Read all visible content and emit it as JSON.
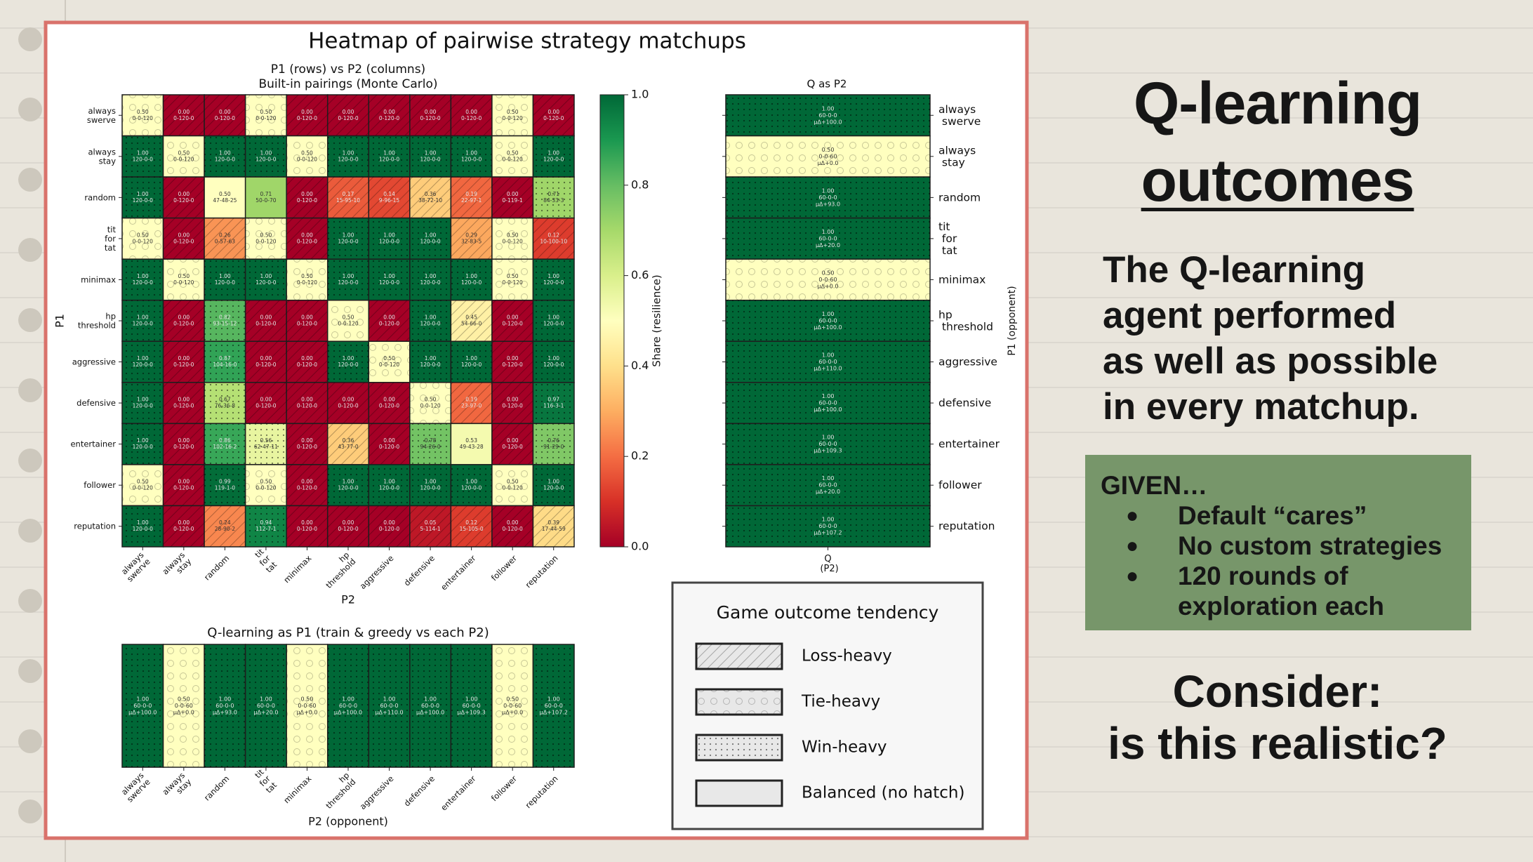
{
  "figure_title": "Heatmap of pairwise strategy matchups",
  "chart_data": [
    {
      "type": "heatmap",
      "title": "P1 (rows) vs P2 (columns)",
      "subtitle": "Built-in pairings (Monte Carlo)",
      "xlabel": "P2",
      "ylabel": "P1",
      "cmap": "RdYlGn",
      "x_categories": [
        "always swerve",
        "always stay",
        "random",
        "tit for tat",
        "minimax",
        "hp threshold",
        "aggressive",
        "defensive",
        "entertainer",
        "follower",
        "reputation"
      ],
      "y_categories": [
        "always swerve",
        "always stay",
        "random",
        "tit for tat",
        "minimax",
        "hp threshold",
        "aggressive",
        "defensive",
        "entertainer",
        "follower",
        "reputation"
      ],
      "values": [
        [
          0.5,
          0,
          0,
          0.5,
          0,
          0,
          0,
          0,
          0,
          0.5,
          0
        ],
        [
          1,
          0.5,
          1,
          1,
          0.5,
          1,
          1,
          1,
          1,
          0.5,
          1
        ],
        [
          1,
          0,
          0.5,
          0.71,
          0,
          0.17,
          0.14,
          0.36,
          0.19,
          0,
          0.71
        ],
        [
          0.5,
          0,
          0.26,
          0.5,
          0,
          1,
          1,
          1,
          0.29,
          0.5,
          0.12
        ],
        [
          1,
          0.5,
          1,
          1,
          0.5,
          1,
          1,
          1,
          1,
          0.5,
          1
        ],
        [
          1,
          0,
          0.82,
          0,
          0,
          0.5,
          0,
          1,
          0.45,
          0,
          1
        ],
        [
          1,
          0,
          0.87,
          0,
          0,
          1,
          0.5,
          1,
          1,
          0,
          1
        ],
        [
          1,
          0,
          0.67,
          0,
          0,
          0,
          0,
          0.5,
          0.19,
          0,
          0.97
        ],
        [
          1,
          0,
          0.86,
          0.56,
          0,
          0.36,
          0,
          0.78,
          0.53,
          0,
          0.76
        ],
        [
          0.5,
          0,
          0.99,
          0.5,
          0,
          1,
          1,
          1,
          1,
          0.5,
          1
        ],
        [
          1,
          0,
          0.24,
          0.94,
          0,
          0,
          0,
          0.05,
          0.12,
          0,
          0.39
        ]
      ],
      "value_labels": [
        [
          "0.50",
          "0.00",
          "0.00",
          "0.50",
          "0.00",
          "0.00",
          "0.00",
          "0.00",
          "0.00",
          "0.50",
          "0.00"
        ],
        [
          "1.00",
          "0.50",
          "1.00",
          "1.00",
          "0.50",
          "1.00",
          "1.00",
          "1.00",
          "1.00",
          "0.50",
          "1.00"
        ],
        [
          "1.00",
          "0.00",
          "0.50",
          "0.71",
          "0.00",
          "0.17",
          "0.14",
          "0.36",
          "0.19",
          "0.00",
          "0.71"
        ],
        [
          "0.50",
          "0.00",
          "0.26",
          "0.50",
          "0.00",
          "1.00",
          "1.00",
          "1.00",
          "0.29",
          "0.50",
          "0.12"
        ],
        [
          "1.00",
          "0.50",
          "1.00",
          "1.00",
          "0.50",
          "1.00",
          "1.00",
          "1.00",
          "1.00",
          "0.50",
          "1.00"
        ],
        [
          "1.00",
          "0.00",
          "0.82",
          "0.00",
          "0.00",
          "0.50",
          "0.00",
          "1.00",
          "0.45",
          "0.00",
          "1.00"
        ],
        [
          "1.00",
          "0.00",
          "0.87",
          "0.00",
          "0.00",
          "1.00",
          "0.50",
          "1.00",
          "1.00",
          "0.00",
          "1.00"
        ],
        [
          "1.00",
          "0.00",
          "0.67",
          "0.00",
          "0.00",
          "0.00",
          "0.00",
          "0.50",
          "0.19",
          "0.00",
          "0.97"
        ],
        [
          "1.00",
          "0.00",
          "0.86",
          "0.56",
          "0.00",
          "0.36",
          "0.00",
          "0.78",
          "0.53",
          "0.00",
          "0.76"
        ],
        [
          "0.50",
          "0.00",
          "0.99",
          "0.50",
          "0.00",
          "1.00",
          "1.00",
          "1.00",
          "1.00",
          "0.50",
          "1.00"
        ],
        [
          "1.00",
          "0.00",
          "0.24",
          "0.94",
          "0.00",
          "0.00",
          "0.00",
          "0.05",
          "0.12",
          "0.00",
          "0.39"
        ]
      ],
      "counts": [
        [
          "0-0-120",
          "0-120-0",
          "0-120-0",
          "0-0-120",
          "0-120-0",
          "0-120-0",
          "0-120-0",
          "0-120-0",
          "0-120-0",
          "0-0-120",
          "0-120-0"
        ],
        [
          "120-0-0",
          "0-0-120",
          "120-0-0",
          "120-0-0",
          "0-0-120",
          "120-0-0",
          "120-0-0",
          "120-0-0",
          "120-0-0",
          "0-0-120",
          "120-0-0"
        ],
        [
          "120-0-0",
          "0-120-0",
          "47-48-25",
          "50-0-70",
          "0-120-0",
          "15-95-10",
          "9-96-15",
          "38-72-10",
          "22-97-1",
          "0-119-1",
          "84-33-3"
        ],
        [
          "0-0-120",
          "0-120-0",
          "0-57-63",
          "0-0-120",
          "0-120-0",
          "120-0-0",
          "120-0-0",
          "120-0-0",
          "32-83-5",
          "0-0-120",
          "10-100-10"
        ],
        [
          "120-0-0",
          "0-0-120",
          "120-0-0",
          "120-0-0",
          "0-0-120",
          "120-0-0",
          "120-0-0",
          "120-0-0",
          "120-0-0",
          "0-0-120",
          "120-0-0"
        ],
        [
          "120-0-0",
          "0-120-0",
          "93-15-12",
          "0-120-0",
          "0-120-0",
          "0-0-120",
          "0-120-0",
          "120-0-0",
          "54-66-0",
          "0-120-0",
          "120-0-0"
        ],
        [
          "120-0-0",
          "0-120-0",
          "104-16-0",
          "0-120-0",
          "0-120-0",
          "120-0-0",
          "0-0-120",
          "120-0-0",
          "120-0-0",
          "0-120-0",
          "120-0-0"
        ],
        [
          "120-0-0",
          "0-120-0",
          "76-36-8",
          "0-120-0",
          "0-120-0",
          "0-120-0",
          "0-120-0",
          "0-0-120",
          "23-97-0",
          "0-120-0",
          "116-3-1"
        ],
        [
          "120-0-0",
          "0-120-0",
          "102-16-2",
          "62-47-11",
          "0-120-0",
          "43-77-0",
          "0-120-0",
          "94-26-0",
          "49-43-28",
          "0-120-0",
          "91-29-0"
        ],
        [
          "0-0-120",
          "0-120-0",
          "119-1-0",
          "0-0-120",
          "0-120-0",
          "120-0-0",
          "120-0-0",
          "120-0-0",
          "120-0-0",
          "0-0-120",
          "120-0-0"
        ],
        [
          "120-0-0",
          "0-120-0",
          "28-90-2",
          "112-7-1",
          "0-120-0",
          "0-120-0",
          "0-120-0",
          "5-114-1",
          "15-105-0",
          "0-120-0",
          "17-44-59"
        ]
      ],
      "hatch": [
        [
          1,
          0,
          0,
          1,
          0,
          0,
          0,
          0,
          0,
          1,
          0
        ],
        [
          2,
          1,
          2,
          2,
          1,
          2,
          2,
          2,
          2,
          1,
          2
        ],
        [
          2,
          0,
          3,
          3,
          0,
          0,
          0,
          0,
          0,
          0,
          2
        ],
        [
          1,
          0,
          0,
          1,
          0,
          2,
          2,
          2,
          0,
          1,
          0
        ],
        [
          2,
          1,
          2,
          2,
          1,
          2,
          2,
          2,
          2,
          1,
          2
        ],
        [
          2,
          0,
          2,
          0,
          0,
          1,
          0,
          2,
          0,
          0,
          2
        ],
        [
          2,
          0,
          2,
          0,
          0,
          2,
          1,
          2,
          2,
          0,
          2
        ],
        [
          2,
          0,
          2,
          0,
          0,
          0,
          0,
          1,
          0,
          0,
          2
        ],
        [
          2,
          0,
          2,
          2,
          0,
          0,
          0,
          2,
          3,
          0,
          2
        ],
        [
          1,
          0,
          2,
          1,
          0,
          2,
          2,
          2,
          2,
          1,
          2
        ],
        [
          2,
          0,
          0,
          2,
          0,
          0,
          0,
          0,
          0,
          0,
          0
        ]
      ],
      "colorbar": {
        "label": "Share (resilience)",
        "clim": [
          0,
          1
        ],
        "ticks": [
          {
            "value": 0,
            "label": "0.0"
          },
          {
            "value": 0.2,
            "label": "0.2"
          },
          {
            "value": 0.4,
            "label": "0.4"
          },
          {
            "value": 0.6,
            "label": "0.6"
          },
          {
            "value": 0.8,
            "label": "0.8"
          },
          {
            "value": 1,
            "label": "1.0"
          }
        ]
      }
    },
    {
      "type": "heatmap",
      "title": "Q as P2",
      "ylabel": "P1 (opponent)",
      "cmap": "RdYlGn",
      "x_categories": [
        "Q (P2)"
      ],
      "y_categories": [
        "always swerve",
        "always stay",
        "random",
        "tit for tat",
        "minimax",
        "hp threshold",
        "aggressive",
        "defensive",
        "entertainer",
        "follower",
        "reputation"
      ],
      "values": [
        [
          1
        ],
        [
          0.5
        ],
        [
          1
        ],
        [
          1
        ],
        [
          0.5
        ],
        [
          1
        ],
        [
          1
        ],
        [
          1
        ],
        [
          1
        ],
        [
          1
        ],
        [
          1
        ]
      ],
      "value_labels": [
        [
          "1.00"
        ],
        [
          "0.50"
        ],
        [
          "1.00"
        ],
        [
          "1.00"
        ],
        [
          "0.50"
        ],
        [
          "1.00"
        ],
        [
          "1.00"
        ],
        [
          "1.00"
        ],
        [
          "1.00"
        ],
        [
          "1.00"
        ],
        [
          "1.00"
        ]
      ],
      "counts": [
        [
          "60-0-0"
        ],
        [
          "0-0-60"
        ],
        [
          "60-0-0"
        ],
        [
          "60-0-0"
        ],
        [
          "0-0-60"
        ],
        [
          "60-0-0"
        ],
        [
          "60-0-0"
        ],
        [
          "60-0-0"
        ],
        [
          "60-0-0"
        ],
        [
          "60-0-0"
        ],
        [
          "60-0-0"
        ]
      ],
      "deltas": [
        [
          "μΔ+100.0"
        ],
        [
          "μΔ+0.0"
        ],
        [
          "μΔ+93.0"
        ],
        [
          "μΔ+20.0"
        ],
        [
          "μΔ+0.0"
        ],
        [
          "μΔ+100.0"
        ],
        [
          "μΔ+110.0"
        ],
        [
          "μΔ+100.0"
        ],
        [
          "μΔ+109.3"
        ],
        [
          "μΔ+20.0"
        ],
        [
          "μΔ+107.2"
        ]
      ],
      "hatch": [
        [
          2
        ],
        [
          1
        ],
        [
          2
        ],
        [
          2
        ],
        [
          1
        ],
        [
          2
        ],
        [
          2
        ],
        [
          2
        ],
        [
          2
        ],
        [
          2
        ],
        [
          2
        ]
      ]
    },
    {
      "type": "heatmap",
      "title": "Q-learning as P1 (train & greedy vs each P2)",
      "xlabel": "P2 (opponent)",
      "cmap": "RdYlGn",
      "x_categories": [
        "always swerve",
        "always stay",
        "random",
        "tit for tat",
        "minimax",
        "hp threshold",
        "aggressive",
        "defensive",
        "entertainer",
        "follower",
        "reputation"
      ],
      "values": [
        [
          1,
          0.5,
          1,
          1,
          0.5,
          1,
          1,
          1,
          1,
          0.5,
          1
        ]
      ],
      "value_labels": [
        [
          "1.00",
          "0.50",
          "1.00",
          "1.00",
          "0.50",
          "1.00",
          "1.00",
          "1.00",
          "1.00",
          "0.50",
          "1.00"
        ]
      ],
      "counts": [
        [
          "60-0-0",
          "0-0-60",
          "60-0-0",
          "60-0-0",
          "0-0-60",
          "60-0-0",
          "60-0-0",
          "60-0-0",
          "60-0-0",
          "0-0-60",
          "60-0-0"
        ]
      ],
      "deltas": [
        [
          "μΔ+100.0",
          "μΔ+0.0",
          "μΔ+93.0",
          "μΔ+20.0",
          "μΔ+0.0",
          "μΔ+100.0",
          "μΔ+110.0",
          "μΔ+100.0",
          "μΔ+109.3",
          "μΔ+0.0",
          "μΔ+107.2"
        ]
      ],
      "hatch": [
        [
          2,
          1,
          2,
          2,
          1,
          2,
          2,
          2,
          2,
          1,
          2
        ]
      ]
    }
  ],
  "legend": {
    "title": "Game outcome tendency",
    "items": [
      "Loss-heavy",
      "Tie-heavy",
      "Win-heavy",
      "Balanced (no hatch)"
    ]
  },
  "slide": {
    "title": [
      "Q-learning",
      "outcomes"
    ],
    "body": [
      "The Q-learning",
      "agent performed",
      "as well as possible",
      "in every matchup."
    ],
    "given_heading": "GIVEN…",
    "given_items": [
      "Default “cares”",
      "No custom strategies",
      "120 rounds of exploration each"
    ],
    "consider": [
      "Consider:",
      "is this realistic?"
    ]
  }
}
